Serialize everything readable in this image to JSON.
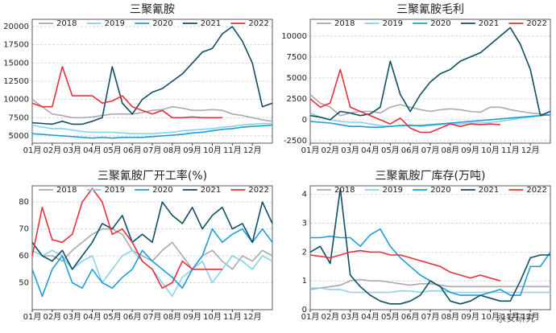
{
  "chart_data": [
    {
      "type": "line",
      "title": "三聚氰胺",
      "x": [
        1,
        1.5,
        2,
        2.5,
        3,
        3.5,
        4,
        4.5,
        5,
        5.5,
        6,
        6.5,
        7,
        7.5,
        8,
        8.5,
        9,
        9.5,
        10,
        10.5,
        11,
        11.5,
        12,
        12.5,
        13
      ],
      "xlim": [
        1,
        13
      ],
      "xticks": [
        {
          "value": 1,
          "label": "01月"
        },
        {
          "value": 2,
          "label": "02月"
        },
        {
          "value": 3,
          "label": "03月"
        },
        {
          "value": 4,
          "label": "04月"
        },
        {
          "value": 5,
          "label": "05月"
        },
        {
          "value": 6,
          "label": "06月"
        },
        {
          "value": 7,
          "label": "07月"
        },
        {
          "value": 8,
          "label": "08月"
        },
        {
          "value": 9,
          "label": "09月"
        },
        {
          "value": 10,
          "label": "10月"
        },
        {
          "value": 11,
          "label": "11月"
        },
        {
          "value": 12,
          "label": "12月"
        }
      ],
      "ylim": [
        4000,
        21000
      ],
      "yticks": [
        5000,
        7500,
        10000,
        12500,
        15000,
        17500,
        20000
      ],
      "grid": true,
      "series": [
        {
          "name": "2018",
          "color": "#aaaaaa",
          "values": [
            10000,
            9000,
            8000,
            7800,
            7500,
            7500,
            7600,
            7800,
            8000,
            8000,
            8000,
            8200,
            8500,
            8600,
            9000,
            8800,
            8500,
            8500,
            8600,
            8500,
            8000,
            7800,
            7500,
            7200,
            7000
          ]
        },
        {
          "name": "2019",
          "color": "#86d3ec",
          "values": [
            6500,
            6200,
            6000,
            6000,
            5800,
            5600,
            5500,
            5500,
            5500,
            5400,
            5300,
            5300,
            5300,
            5400,
            5500,
            5700,
            5800,
            5900,
            6000,
            6200,
            6300,
            6500,
            6600,
            6700,
            6700
          ]
        },
        {
          "name": "2020",
          "color": "#1e9ed6",
          "values": [
            5300,
            5200,
            5100,
            5000,
            4900,
            4800,
            4700,
            4800,
            4700,
            4800,
            4800,
            4800,
            4900,
            5000,
            5100,
            5200,
            5400,
            5500,
            5700,
            5900,
            6000,
            6200,
            6300,
            6400,
            6500
          ]
        },
        {
          "name": "2021",
          "color": "#114e63",
          "values": [
            6800,
            6700,
            6600,
            7000,
            6600,
            6600,
            7000,
            7500,
            14500,
            9500,
            8000,
            10000,
            11000,
            11500,
            12500,
            13500,
            15000,
            16500,
            17000,
            19000,
            20000,
            18000,
            15000,
            9000,
            9500
          ]
        },
        {
          "name": "2022",
          "color": "#e8303a",
          "values": [
            9500,
            9000,
            9000,
            14500,
            10500,
            10500,
            10500,
            9500,
            9800,
            10500,
            9000,
            8500,
            8000,
            8500,
            7500,
            7500,
            7600,
            7500,
            7500,
            7500,
            null,
            null,
            null,
            null,
            null
          ]
        }
      ]
    },
    {
      "type": "line",
      "title": "三聚氰胺毛利",
      "x": [
        1,
        1.5,
        2,
        2.5,
        3,
        3.5,
        4,
        4.5,
        5,
        5.5,
        6,
        6.5,
        7,
        7.5,
        8,
        8.5,
        9,
        9.5,
        10,
        10.5,
        11,
        11.5,
        12,
        12.5,
        13
      ],
      "xlim": [
        1,
        13
      ],
      "xticks": [
        {
          "value": 1,
          "label": "01月"
        },
        {
          "value": 2,
          "label": "02月"
        },
        {
          "value": 3,
          "label": "03月"
        },
        {
          "value": 4,
          "label": "04月"
        },
        {
          "value": 5,
          "label": "05月"
        },
        {
          "value": 6,
          "label": "06月"
        },
        {
          "value": 7,
          "label": "07月"
        },
        {
          "value": 8,
          "label": "08月"
        },
        {
          "value": 9,
          "label": "09月"
        },
        {
          "value": 10,
          "label": "10月"
        },
        {
          "value": 11,
          "label": "11月"
        },
        {
          "value": 12,
          "label": "12月"
        }
      ],
      "ylim": [
        -2800,
        12000
      ],
      "yticks": [
        -2500,
        0,
        2500,
        5000,
        7500,
        10000
      ],
      "grid": true,
      "series": [
        {
          "name": "2018",
          "color": "#aaaaaa",
          "values": [
            3000,
            2000,
            1500,
            500,
            800,
            1000,
            1000,
            800,
            1500,
            1800,
            1500,
            1200,
            1000,
            1200,
            1300,
            1200,
            1000,
            900,
            1500,
            1500,
            1200,
            1000,
            800,
            700,
            500
          ]
        },
        {
          "name": "2019",
          "color": "#86d3ec",
          "values": [
            800,
            300,
            0,
            -200,
            -300,
            -300,
            -500,
            -700,
            -800,
            -700,
            -600,
            -800,
            -700,
            -600,
            -500,
            -500,
            -400,
            -400,
            -300,
            -200,
            0,
            200,
            300,
            500,
            600
          ]
        },
        {
          "name": "2020",
          "color": "#1e9ed6",
          "values": [
            -200,
            -300,
            -400,
            -600,
            -800,
            -800,
            -900,
            -900,
            -800,
            -700,
            -700,
            -700,
            -600,
            -500,
            -400,
            -300,
            -200,
            -100,
            0,
            100,
            200,
            300,
            400,
            500,
            600
          ]
        },
        {
          "name": "2021",
          "color": "#114e63",
          "values": [
            500,
            300,
            0,
            1000,
            800,
            500,
            700,
            1500,
            7000,
            3000,
            1000,
            3000,
            4500,
            5500,
            6000,
            7000,
            7500,
            8000,
            9000,
            10000,
            11000,
            9000,
            6000,
            500,
            1000
          ]
        },
        {
          "name": "2022",
          "color": "#e8303a",
          "values": [
            2500,
            1500,
            2000,
            6000,
            1500,
            1000,
            500,
            0,
            -500,
            200,
            -1000,
            -1500,
            -1500,
            -1000,
            -500,
            -800,
            -500,
            -600,
            -500,
            -600,
            null,
            null,
            null,
            null,
            null
          ]
        }
      ]
    },
    {
      "type": "line",
      "title": "三聚氰胺厂开工率(%)",
      "x": [
        1,
        1.5,
        2,
        2.5,
        3,
        3.5,
        4,
        4.5,
        5,
        5.5,
        6,
        6.5,
        7,
        7.5,
        8,
        8.5,
        9,
        9.5,
        10,
        10.5,
        11,
        11.5,
        12,
        12.5,
        13
      ],
      "xlim": [
        1,
        13
      ],
      "xticks": [
        {
          "value": 1,
          "label": "01月"
        },
        {
          "value": 2,
          "label": "02月"
        },
        {
          "value": 3,
          "label": "03月"
        },
        {
          "value": 4,
          "label": "04月"
        },
        {
          "value": 5,
          "label": "05月"
        },
        {
          "value": 6,
          "label": "06月"
        },
        {
          "value": 7,
          "label": "07月"
        },
        {
          "value": 8,
          "label": "08月"
        },
        {
          "value": 9,
          "label": "09月"
        },
        {
          "value": 10,
          "label": "10月"
        },
        {
          "value": 11,
          "label": "11月"
        },
        {
          "value": 12,
          "label": "12月"
        }
      ],
      "ylim": [
        40,
        86
      ],
      "yticks": [
        50,
        60,
        70,
        80
      ],
      "grid": true,
      "series": [
        {
          "name": "2018",
          "color": "#aaaaaa",
          "values": [
            65,
            60,
            60,
            58,
            62,
            65,
            68,
            70,
            70,
            68,
            62,
            60,
            58,
            62,
            65,
            60,
            55,
            60,
            62,
            58,
            55,
            60,
            58,
            62,
            60
          ]
        },
        {
          "name": "2019",
          "color": "#86d3ec",
          "values": [
            62,
            60,
            62,
            60,
            55,
            58,
            60,
            50,
            55,
            60,
            62,
            58,
            55,
            50,
            45,
            52,
            55,
            58,
            50,
            55,
            60,
            58,
            55,
            60,
            58
          ]
        },
        {
          "name": "2020",
          "color": "#1e9ed6",
          "values": [
            55,
            45,
            55,
            60,
            50,
            48,
            55,
            50,
            48,
            52,
            55,
            62,
            58,
            55,
            52,
            48,
            55,
            60,
            70,
            65,
            68,
            70,
            65,
            70,
            65
          ]
        },
        {
          "name": "2021",
          "color": "#114e63",
          "values": [
            65,
            60,
            58,
            62,
            55,
            60,
            65,
            72,
            70,
            75,
            65,
            68,
            65,
            80,
            75,
            72,
            78,
            70,
            75,
            78,
            70,
            72,
            65,
            80,
            72
          ]
        },
        {
          "name": "2022",
          "color": "#e8303a",
          "values": [
            60,
            78,
            66,
            65,
            68,
            80,
            85,
            80,
            68,
            70,
            65,
            58,
            55,
            48,
            50,
            58,
            55,
            55,
            55,
            55,
            null,
            null,
            null,
            null,
            null
          ]
        }
      ]
    },
    {
      "type": "line",
      "title": "三聚氰胺厂库存(万吨)",
      "x": [
        1,
        1.5,
        2,
        2.5,
        3,
        3.5,
        4,
        4.5,
        5,
        5.5,
        6,
        6.5,
        7,
        7.5,
        8,
        8.5,
        9,
        9.5,
        10,
        10.5,
        11,
        11.5,
        12,
        12.5,
        13
      ],
      "xlim": [
        1,
        13
      ],
      "xticks": [
        {
          "value": 1,
          "label": "01月"
        },
        {
          "value": 2,
          "label": "02月"
        },
        {
          "value": 3,
          "label": "03月"
        },
        {
          "value": 4,
          "label": "04月"
        },
        {
          "value": 5,
          "label": "05月"
        },
        {
          "value": 6,
          "label": "06月"
        },
        {
          "value": 7,
          "label": "07月"
        },
        {
          "value": 8,
          "label": "08月"
        },
        {
          "value": 9,
          "label": "09月"
        },
        {
          "value": 10,
          "label": "10月"
        },
        {
          "value": 11,
          "label": "11月"
        },
        {
          "value": 12,
          "label": "12月"
        }
      ],
      "ylim": [
        0,
        4.3
      ],
      "yticks": [
        0,
        1,
        2,
        3,
        4
      ],
      "grid": true,
      "series": [
        {
          "name": "2018",
          "color": "#aaaaaa",
          "values": [
            0.7,
            0.75,
            0.8,
            0.85,
            1.0,
            1.05,
            1.0,
            1.0,
            0.95,
            0.9,
            0.85,
            0.9,
            0.9,
            0.85,
            0.8,
            0.8,
            0.8,
            0.8,
            0.8,
            0.8,
            0.8,
            0.8,
            0.8,
            0.8,
            0.8
          ]
        },
        {
          "name": "2019",
          "color": "#86d3ec",
          "values": [
            0.75,
            0.75,
            0.7,
            0.7,
            0.6,
            0.6,
            0.6,
            0.6,
            0.6,
            0.65,
            0.65,
            0.6,
            0.65,
            0.65,
            0.6,
            0.6,
            0.6,
            0.6,
            0.6,
            0.6,
            0.6,
            0.6,
            0.6,
            0.6,
            0.6
          ]
        },
        {
          "name": "2020",
          "color": "#1e9ed6",
          "values": [
            2.5,
            2.5,
            2.55,
            2.5,
            2.5,
            2.2,
            2.6,
            2.8,
            2.2,
            1.8,
            1.5,
            1.2,
            1.0,
            0.8,
            0.6,
            0.5,
            0.5,
            0.5,
            0.6,
            0.7,
            0.5,
            0.5,
            1.5,
            1.5,
            2.0
          ]
        },
        {
          "name": "2021",
          "color": "#114e63",
          "values": [
            2.0,
            2.2,
            1.6,
            4.2,
            1.2,
            0.8,
            0.5,
            0.3,
            0.2,
            0.2,
            0.3,
            0.5,
            1.0,
            0.8,
            0.3,
            0.2,
            0.3,
            0.5,
            0.4,
            0.3,
            0.3,
            1.0,
            1.8,
            1.9,
            1.9
          ]
        },
        {
          "name": "2022",
          "color": "#e8303a",
          "values": [
            1.9,
            1.85,
            1.8,
            1.9,
            2.0,
            2.05,
            2.0,
            2.0,
            1.9,
            1.9,
            1.8,
            1.7,
            1.6,
            1.5,
            1.3,
            1.2,
            1.1,
            1.2,
            1.1,
            1.0,
            null,
            null,
            null,
            null,
            null
          ]
        }
      ]
    }
  ],
  "watermark": "永安研究"
}
